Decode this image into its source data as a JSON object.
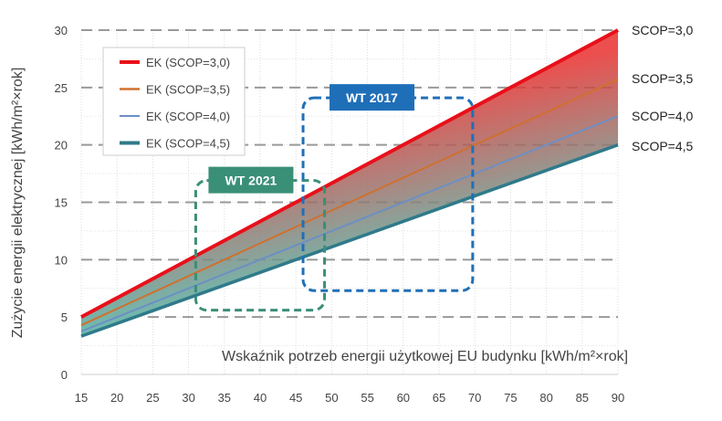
{
  "chart_data": {
    "type": "line",
    "xlabel": "Wskaźnik potrzeb energii użytkowej EU budynku [kWh/m²×rok]",
    "ylabel": "Zużycie energii elektrycznej [kWh/m²×rok]",
    "xlim": [
      15,
      90
    ],
    "ylim": [
      0,
      30
    ],
    "xticks": [
      15,
      20,
      25,
      30,
      35,
      40,
      45,
      50,
      55,
      60,
      65,
      70,
      75,
      80,
      85,
      90
    ],
    "yticks": [
      0,
      5,
      10,
      15,
      20,
      25,
      30
    ],
    "grid": true,
    "legend_placement": "top-left",
    "x": [
      15,
      90
    ],
    "series": [
      {
        "name": "EK (SCOP=3,0)",
        "end_label": "SCOP=3,0",
        "values": [
          5.0,
          30.0
        ],
        "color": "#e8101a"
      },
      {
        "name": "EK (SCOP=3,5)",
        "end_label": "SCOP=3,5",
        "values": [
          4.29,
          25.71
        ],
        "color": "#d0702e"
      },
      {
        "name": "EK (SCOP=4,0)",
        "end_label": "SCOP=4,0",
        "values": [
          3.75,
          22.5
        ],
        "color": "#6d8fc4"
      },
      {
        "name": "EK (SCOP=4,5)",
        "end_label": "SCOP=4,5",
        "values": [
          3.33,
          20.0
        ],
        "color": "#2f7a8a"
      }
    ],
    "fill_between": {
      "top_color": "#e8302e",
      "bottom_color": "#4fb3a6"
    },
    "annotations": [
      {
        "label": "WT 2021",
        "color": "#3a8f77",
        "x_range": [
          31,
          49
        ],
        "y_range": [
          5.6,
          16.9
        ]
      },
      {
        "label": "WT 2017",
        "color": "#1f6fb8",
        "x_range": [
          46,
          69.7
        ],
        "y_range": [
          7.3,
          24.1
        ]
      }
    ]
  }
}
